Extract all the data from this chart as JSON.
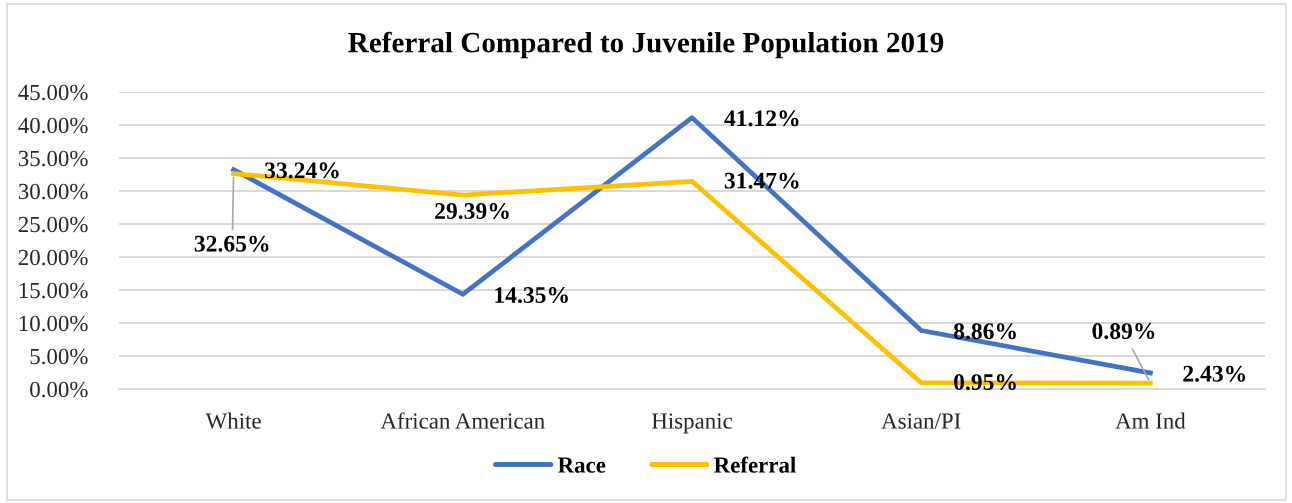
{
  "chart_data": {
    "type": "line",
    "title": "Referral Compared to Juvenile Population 2019",
    "categories": [
      "White",
      "African American",
      "Hispanic",
      "Asian/PI",
      "Am Ind"
    ],
    "series": [
      {
        "name": "Race",
        "color": "#4472c4",
        "values": [
          33.24,
          14.35,
          41.12,
          8.86,
          2.43
        ],
        "value_labels": [
          "33.24%",
          "14.35%",
          "41.12%",
          "8.86%",
          "2.43%"
        ]
      },
      {
        "name": "Referral",
        "color": "#ffc000",
        "values": [
          32.65,
          29.39,
          31.47,
          0.95,
          0.89
        ],
        "value_labels": [
          "32.65%",
          "29.39%",
          "31.47%",
          "0.95%",
          "0.89%"
        ]
      }
    ],
    "ylim": [
      0,
      45
    ],
    "yticks": [
      {
        "value": 0,
        "label": "0.00%"
      },
      {
        "value": 5,
        "label": "5.00%"
      },
      {
        "value": 10,
        "label": "10.00%"
      },
      {
        "value": 15,
        "label": "15.00%"
      },
      {
        "value": 20,
        "label": "20.00%"
      },
      {
        "value": 25,
        "label": "25.00%"
      },
      {
        "value": 30,
        "label": "30.00%"
      },
      {
        "value": 35,
        "label": "35.00%"
      },
      {
        "value": 40,
        "label": "40.00%"
      },
      {
        "value": 45,
        "label": "45.00%"
      }
    ],
    "grid": "y",
    "legend": "bottom",
    "marker": "none",
    "line_style": "solid"
  }
}
